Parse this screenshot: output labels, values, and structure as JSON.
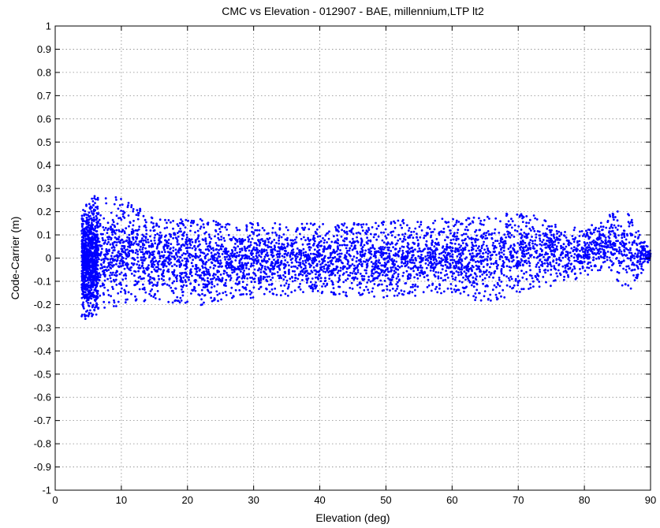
{
  "chart_data": {
    "type": "scatter",
    "title": "CMC vs Elevation - 012907 - BAE, millennium,LTP lt2",
    "xlabel": "Elevation (deg)",
    "ylabel": "Code-Carrier (m)",
    "xlim": [
      0,
      90
    ],
    "ylim": [
      -1,
      1
    ],
    "x_ticks": [
      0,
      10,
      20,
      30,
      40,
      50,
      60,
      70,
      80,
      90
    ],
    "x_tick_labels": [
      "0",
      "10",
      "20",
      "30",
      "40",
      "50",
      "60",
      "70",
      "80",
      "90"
    ],
    "y_ticks": [
      -1,
      -0.9,
      -0.8,
      -0.7,
      -0.6,
      -0.5,
      -0.4,
      -0.3,
      -0.2,
      -0.1,
      0,
      0.1,
      0.2,
      0.3,
      0.4,
      0.5,
      0.6,
      0.7,
      0.8,
      0.9,
      1
    ],
    "y_tick_labels": [
      "-1",
      "-0.9",
      "-0.8",
      "-0.7",
      "-0.6",
      "-0.5",
      "-0.4",
      "-0.3",
      "-0.2",
      "-0.1",
      "0",
      "0.1",
      "0.2",
      "0.3",
      "0.4",
      "0.5",
      "0.6",
      "0.7",
      "0.8",
      "0.9",
      "1"
    ],
    "grid": true,
    "marker_color": "#0000ff",
    "series": [
      {
        "x_range": [
          4,
          90
        ],
        "envelope": [
          {
            "x": 4,
            "lo": -0.27,
            "hi": 0.23
          },
          {
            "x": 6,
            "lo": -0.25,
            "hi": 0.27
          },
          {
            "x": 10,
            "lo": -0.2,
            "hi": 0.26
          },
          {
            "x": 15,
            "lo": -0.18,
            "hi": 0.18
          },
          {
            "x": 20,
            "lo": -0.21,
            "hi": 0.17
          },
          {
            "x": 30,
            "lo": -0.17,
            "hi": 0.16
          },
          {
            "x": 40,
            "lo": -0.16,
            "hi": 0.15
          },
          {
            "x": 50,
            "lo": -0.17,
            "hi": 0.16
          },
          {
            "x": 57,
            "lo": -0.16,
            "hi": 0.18
          },
          {
            "x": 60,
            "lo": -0.15,
            "hi": 0.17
          },
          {
            "x": 65,
            "lo": -0.2,
            "hi": 0.18
          },
          {
            "x": 70,
            "lo": -0.15,
            "hi": 0.2
          },
          {
            "x": 75,
            "lo": -0.12,
            "hi": 0.17
          },
          {
            "x": 80,
            "lo": -0.08,
            "hi": 0.12
          },
          {
            "x": 84,
            "lo": -0.05,
            "hi": 0.2
          },
          {
            "x": 86,
            "lo": -0.15,
            "hi": 0.21
          },
          {
            "x": 88,
            "lo": -0.12,
            "hi": 0.15
          },
          {
            "x": 90,
            "lo": 0.0,
            "hi": 0.03
          }
        ]
      }
    ]
  }
}
